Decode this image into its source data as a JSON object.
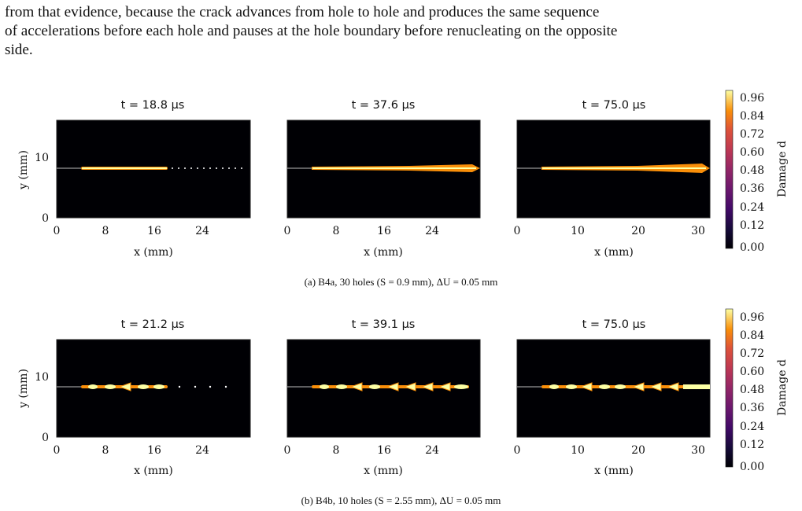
{
  "paragraph": {
    "lines": [
      "from that evidence, because the crack advances from hole to hole and produces the same sequence",
      "of accelerations before each hole and pauses at the hole boundary before renucleating on the opposite",
      "side."
    ]
  },
  "figures": [
    {
      "caption": "(a) B4a, 30 holes (S = 0.9 mm), ΔU = 0.05 mm",
      "panels": [
        {
          "title": "t = 18.8 μs",
          "xlabel": "x (mm)",
          "ylabel": "y (mm)",
          "xticks": [
            "0",
            "8",
            "16",
            "24"
          ],
          "yticks": [
            "0",
            "10"
          ]
        },
        {
          "title": "t = 37.6 μs",
          "xlabel": "x (mm)",
          "xticks": [
            "0",
            "8",
            "16",
            "24"
          ]
        },
        {
          "title": "t = 75.0 μs",
          "xlabel": "x (mm)",
          "xticks": [
            "0",
            "10",
            "20",
            "30"
          ]
        }
      ],
      "colorbar": {
        "label": "Damage d",
        "ticks": [
          "0.96",
          "0.84",
          "0.72",
          "0.60",
          "0.48",
          "0.36",
          "0.24",
          "0.12",
          "0.00"
        ]
      }
    },
    {
      "caption": "(b) B4b, 10 holes (S = 2.55 mm), ΔU = 0.05 mm",
      "panels": [
        {
          "title": "t = 21.2 μs",
          "xlabel": "x (mm)",
          "ylabel": "y (mm)",
          "xticks": [
            "0",
            "8",
            "16",
            "24"
          ],
          "yticks": [
            "0",
            "10"
          ]
        },
        {
          "title": "t = 39.1 μs",
          "xlabel": "x (mm)",
          "xticks": [
            "0",
            "8",
            "16",
            "24"
          ]
        },
        {
          "title": "t = 75.0 μs",
          "xlabel": "x (mm)",
          "xticks": [
            "0",
            "10",
            "20",
            "30"
          ]
        }
      ],
      "colorbar": {
        "label": "Damage d",
        "ticks": [
          "0.96",
          "0.84",
          "0.72",
          "0.60",
          "0.48",
          "0.36",
          "0.24",
          "0.12",
          "0.00"
        ]
      }
    }
  ],
  "colors": {
    "background": "#000004",
    "crack_core": "#fcffa4",
    "crack_edge": "#f98e09",
    "hole": "#ffffff"
  }
}
